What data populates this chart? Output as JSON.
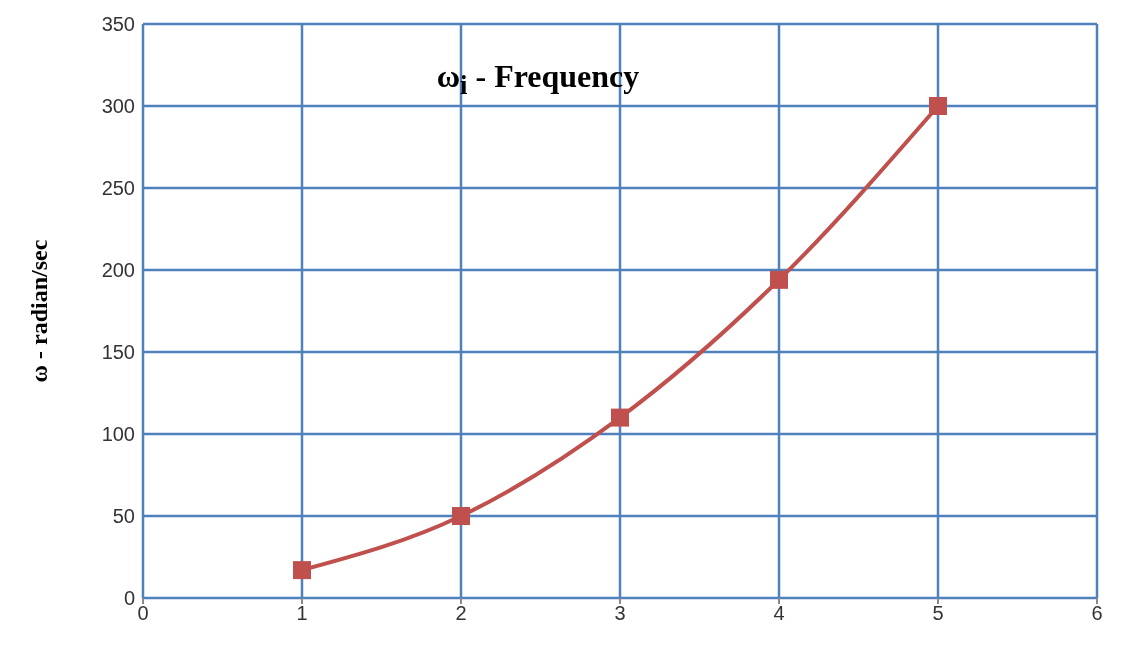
{
  "chart_data": {
    "type": "line",
    "title": "ω$_{i}$ - Frequency",
    "ylabel": "ω - radian/sec",
    "x": [
      1,
      2,
      3,
      4,
      5
    ],
    "series": [
      {
        "color": "#c0504d",
        "values": [
          17,
          50,
          110,
          194,
          300
        ]
      }
    ],
    "xlim": [
      0,
      6
    ],
    "xticks": [
      0,
      1,
      2,
      3,
      4,
      5,
      6
    ],
    "ylim": [
      0,
      350
    ],
    "yticks": [
      0,
      50,
      100,
      150,
      200,
      250,
      300,
      350
    ],
    "grid": true,
    "marker": "square",
    "line_style": "solid",
    "legend": false
  }
}
